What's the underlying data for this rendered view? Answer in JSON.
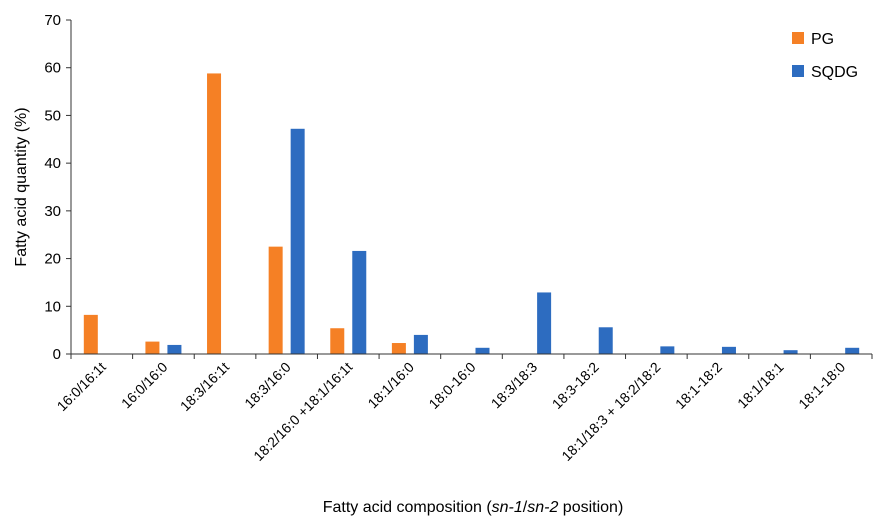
{
  "chart_data": {
    "type": "bar",
    "xlabel_parts": [
      {
        "text": "Fatty acid composition (",
        "italic": false
      },
      {
        "text": "sn-1",
        "italic": true
      },
      {
        "text": "/",
        "italic": false
      },
      {
        "text": "sn-2",
        "italic": true
      },
      {
        "text": " position)",
        "italic": false
      }
    ],
    "ylabel": "Fatty acid quantity (%)",
    "ylim": [
      0,
      70
    ],
    "yticks": [
      0,
      10,
      20,
      30,
      40,
      50,
      60,
      70
    ],
    "grid": false,
    "legend_position": "top-right",
    "categories": [
      "16:0/16:1t",
      "16:0/16:0",
      "18:3/16:1t",
      "18:3/16:0",
      "18:2/16:0 +18:1/16:1t",
      "18:1/16:0",
      "18:0-16:0",
      "18:3/18:3",
      "18:3-18:2",
      "18:1/18:3 + 18:2/18:2",
      "18:1-18:2",
      "18:1/18:1",
      "18:1-18:0"
    ],
    "series": [
      {
        "name": "PG",
        "color": "#F58025",
        "values": [
          8.2,
          2.6,
          58.8,
          22.5,
          5.4,
          2.3,
          null,
          null,
          null,
          null,
          null,
          null,
          null
        ]
      },
      {
        "name": "SQDG",
        "color": "#2D6CC0",
        "values": [
          null,
          1.9,
          null,
          47.2,
          21.6,
          4.0,
          1.3,
          12.9,
          5.6,
          1.6,
          1.5,
          0.8,
          1.3
        ]
      }
    ]
  }
}
